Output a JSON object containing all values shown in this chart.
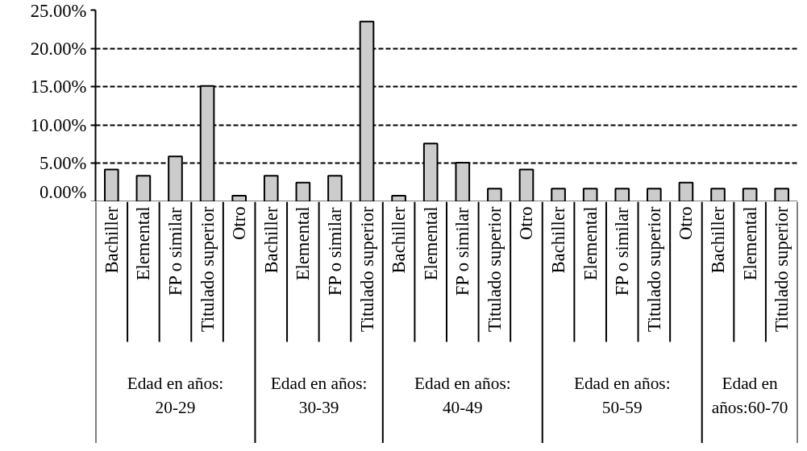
{
  "chart_data": {
    "type": "bar",
    "categories": [
      "Bachiller",
      "Elemental",
      "FP o similar",
      "Titulado superior",
      "Otro",
      "Bachiller",
      "Elemental",
      "FP o similar",
      "Titulado superior",
      "Bachiller",
      "Elemental",
      "FP o similar",
      "Titulado superior",
      "Otro",
      "Bachiller",
      "Elemental",
      "FP o similar",
      "Titulado superior",
      "Otro",
      "Bachiller",
      "Elemental",
      "Titulado superior"
    ],
    "values": [
      4.2,
      3.4,
      5.9,
      15.1,
      0.8,
      3.4,
      2.5,
      3.4,
      23.5,
      0.8,
      7.6,
      5.1,
      1.7,
      4.2,
      1.7,
      1.7,
      1.7,
      1.7,
      2.5,
      1.7,
      1.7,
      1.7
    ],
    "color": "#cccccc",
    "ylim": [
      0,
      25
    ],
    "yticks": [
      {
        "value": 0,
        "label": "0.00%"
      },
      {
        "value": 5,
        "label": "5.00%"
      },
      {
        "value": 10,
        "label": "10.00%"
      },
      {
        "value": 15,
        "label": "15.00%"
      },
      {
        "value": 20,
        "label": "20.00%"
      },
      {
        "value": 25,
        "label": "25.00%"
      }
    ],
    "grid": "y",
    "annotations": [
      "Edad en años: 20-29",
      "Edad en años: 30-39",
      "Edad en años: 40-49",
      "Edad en años: 50-59",
      "Edad en años:60-70"
    ]
  }
}
